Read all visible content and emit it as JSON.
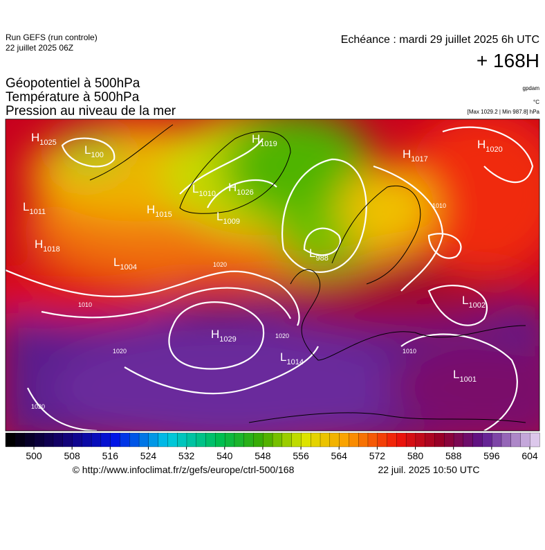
{
  "header": {
    "run": "Run GEFS (run controle)",
    "date": "22 juillet 2025 06Z",
    "echeance": "Echéance : mardi 29 juillet 2025 6h UTC",
    "lead": "+ 168H",
    "titles": [
      "Géopotentiel à 500hPa",
      "Température à 500hPa",
      "Pression au niveau de la mer"
    ],
    "units": [
      "gpdam",
      "°C",
      "[Max 1029.2 | Min 987.8] hPa"
    ]
  },
  "centers": [
    {
      "type": "H",
      "value": "1025"
    },
    {
      "type": "L",
      "value": "100"
    },
    {
      "type": "L",
      "value": "1011"
    },
    {
      "type": "H",
      "value": "1018"
    },
    {
      "type": "L",
      "value": "1004"
    },
    {
      "type": "H",
      "value": "1015"
    },
    {
      "type": "L",
      "value": "1010"
    },
    {
      "type": "H",
      "value": "1026"
    },
    {
      "type": "L",
      "value": "1009"
    },
    {
      "type": "H",
      "value": "1019"
    },
    {
      "type": "L",
      "value": "988"
    },
    {
      "type": "H",
      "value": "1017"
    },
    {
      "type": "H",
      "value": "1020"
    },
    {
      "type": "L",
      "value": "1002"
    },
    {
      "type": "H",
      "value": "1029"
    },
    {
      "type": "L",
      "value": "1014"
    },
    {
      "type": "L",
      "value": "1001"
    }
  ],
  "contour_labels": [
    "1020",
    "1010",
    "1020",
    "1020",
    "1010",
    "1020",
    "1010"
  ],
  "colorbar": {
    "ticks": [
      500,
      508,
      516,
      524,
      532,
      540,
      548,
      556,
      564,
      572,
      580,
      588,
      596,
      604
    ]
  },
  "footer": {
    "url": "© http://www.infoclimat.fr/z/gefs/europe/ctrl-500/168",
    "time": "22 juil. 2025 10:50 UTC"
  }
}
